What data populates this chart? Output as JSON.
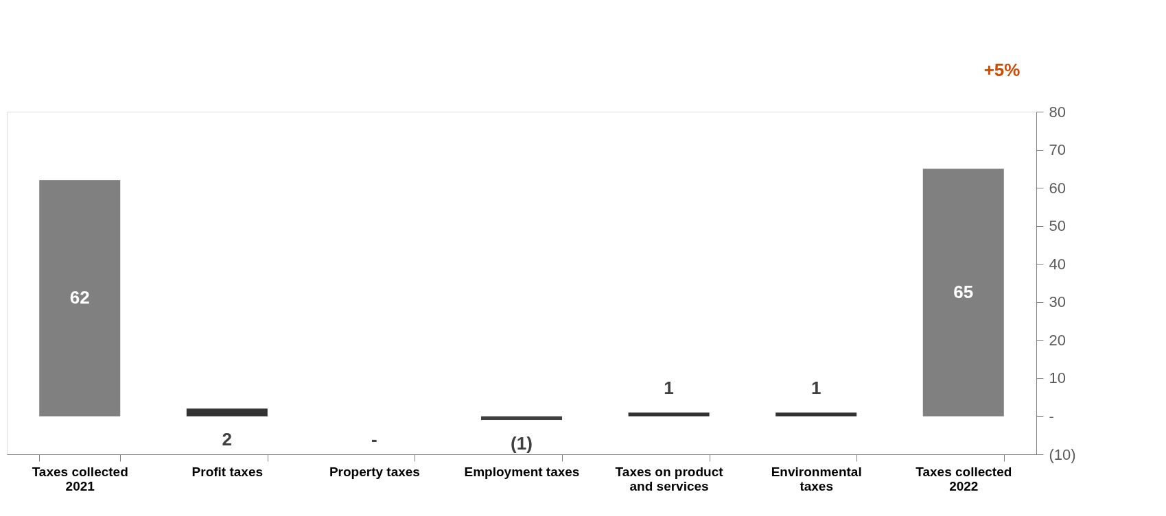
{
  "chart_data": {
    "type": "bar",
    "categories": [
      "Taxes collected\n2021",
      "Profit taxes",
      "Property taxes",
      "Employment taxes",
      "Taxes on product\nand services",
      "Environmental\ntaxes",
      "Taxes collected\n2022"
    ],
    "values": [
      62,
      2,
      0,
      -1,
      1,
      1,
      65
    ],
    "colors": [
      "#808080",
      "#333333",
      "#333333",
      "#404040",
      "#333333",
      "#333333",
      "#808080"
    ],
    "value_labels": [
      "62",
      "2",
      "-",
      "(1)",
      "1",
      "1",
      "65"
    ],
    "ylim": [
      -10,
      80
    ],
    "yticks": [
      {
        "value": -10,
        "label": "(10)"
      },
      {
        "value": 0,
        "label": "-"
      },
      10,
      20,
      30,
      40,
      50,
      60,
      70,
      80
    ],
    "annotations": [
      "+5%"
    ],
    "grid": false
  }
}
